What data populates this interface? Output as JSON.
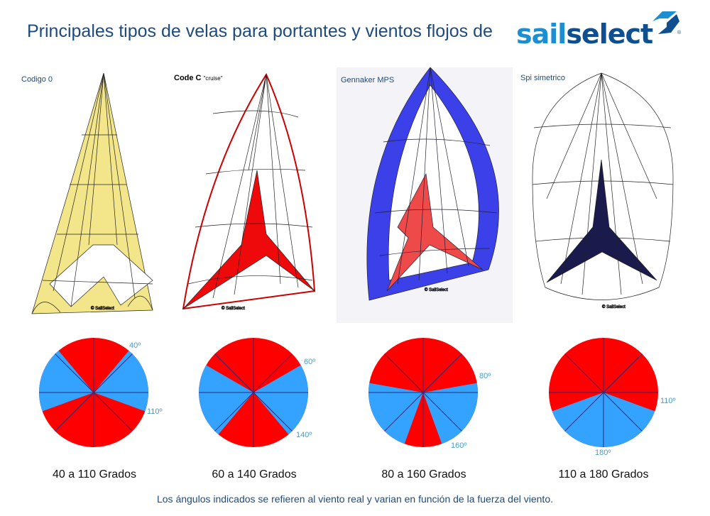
{
  "title": "Principales tipos de velas para portantes y vientos flojos de",
  "logo": {
    "text_a": "sail",
    "text_b": "select",
    "registered": "®"
  },
  "sails": [
    {
      "name": "Codigo 0",
      "copyright": "© SailSelect",
      "fill": "#f3e58a",
      "star": "#ffffff"
    },
    {
      "name": "Code C",
      "subtitle": "\"cruise\"",
      "copyright": "© SailSelect",
      "fill": "#ffffff",
      "star": "#ee0a0a"
    },
    {
      "name": "Gennaker MPS",
      "copyright": "© SailSelect",
      "fill": "#3c40e8",
      "star": "#ee4a4a"
    },
    {
      "name": "Spi simetrico",
      "copyright": "© SailSelect",
      "fill": "#ffffff",
      "star": "#1a1a4d"
    }
  ],
  "wind_diagrams": [
    {
      "from_deg": 40,
      "to_deg": 110,
      "from_label": "40º",
      "to_label": "110º",
      "caption": "40 a 110 Grados"
    },
    {
      "from_deg": 60,
      "to_deg": 140,
      "from_label": "60º",
      "to_label": "140º",
      "caption": "60 a 140 Grados"
    },
    {
      "from_deg": 80,
      "to_deg": 160,
      "from_label": "80º",
      "to_label": "160º",
      "caption": "80 a 160 Grados"
    },
    {
      "from_deg": 110,
      "to_deg": 180,
      "from_label": "110º",
      "to_label": "180º",
      "caption": "110 a 180 Grados"
    }
  ],
  "colors": {
    "in_range": "#33a3ff",
    "out_of_range": "#ff0000",
    "lines": "#2b2b7a"
  },
  "footnote": "Los ángulos indicados se refieren al viento real y varian en función de la fuerza del viento."
}
